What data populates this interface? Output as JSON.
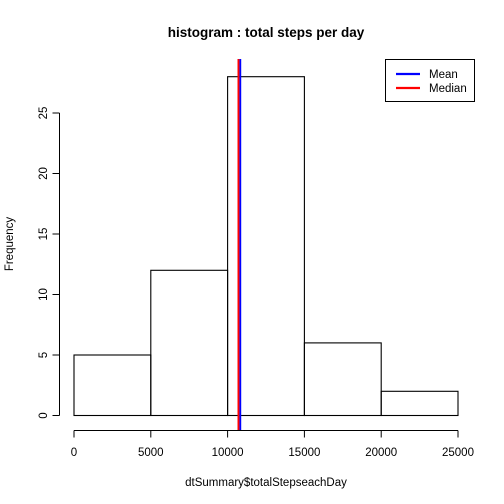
{
  "chart_data": {
    "type": "bar",
    "title": "histogram : total steps per day",
    "xlabel": "dtSummary$totalStepseachDay",
    "ylabel": "Frequency",
    "xlim": [
      0,
      25000
    ],
    "ylim": [
      0,
      28
    ],
    "x_ticks": [
      0,
      5000,
      10000,
      15000,
      20000,
      25000
    ],
    "y_ticks": [
      0,
      5,
      10,
      15,
      20,
      25
    ],
    "bins": [
      {
        "from": 0,
        "to": 5000,
        "count": 5
      },
      {
        "from": 5000,
        "to": 10000,
        "count": 12
      },
      {
        "from": 10000,
        "to": 15000,
        "count": 28
      },
      {
        "from": 15000,
        "to": 20000,
        "count": 6
      },
      {
        "from": 20000,
        "to": 25000,
        "count": 2
      }
    ],
    "lines": [
      {
        "name": "Mean",
        "value": 10766,
        "color": "#0000ff"
      },
      {
        "name": "Median",
        "value": 10765,
        "color": "#ff0000"
      }
    ],
    "legend": {
      "placement": "top-right"
    },
    "grid": false
  }
}
